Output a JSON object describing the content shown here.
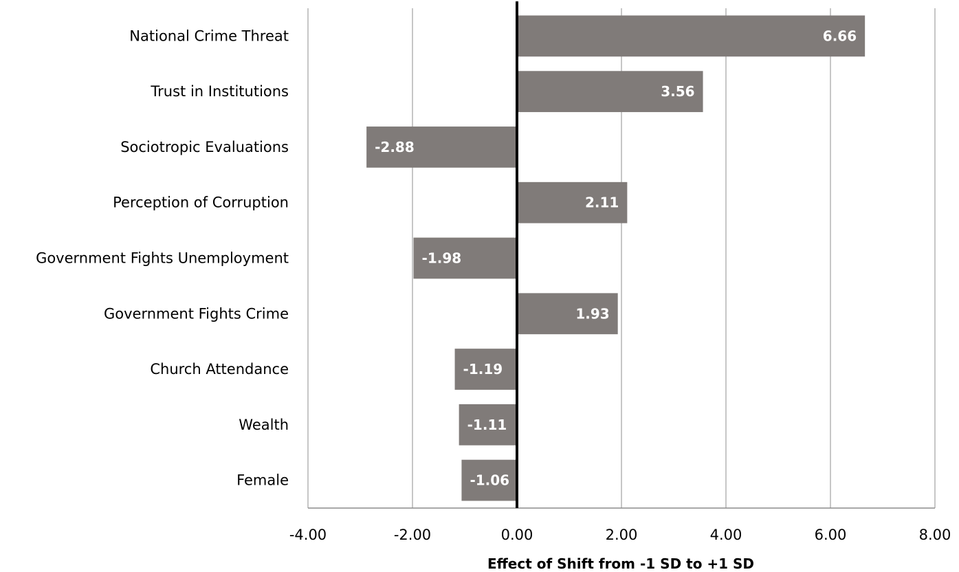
{
  "chart_data": {
    "type": "bar",
    "orientation": "horizontal",
    "categories": [
      "National Crime Threat",
      "Trust in Institutions",
      "Sociotropic Evaluations",
      "Perception of Corruption",
      "Government Fights Unemployment",
      "Government Fights Crime",
      "Church Attendance",
      "Wealth",
      "Female"
    ],
    "values": [
      6.66,
      3.56,
      -2.88,
      2.11,
      -1.98,
      1.93,
      -1.19,
      -1.11,
      -1.06
    ],
    "value_labels": [
      "6.66",
      "3.56",
      "-2.88",
      "2.11",
      "-1.98",
      "1.93",
      "-1.19",
      "-1.11",
      "-1.06"
    ],
    "xlim": [
      -4,
      8
    ],
    "xticks": [
      -4,
      -2,
      0,
      2,
      4,
      6,
      8
    ],
    "xtick_labels": [
      "-4.00",
      "-2.00",
      "0.00",
      "2.00",
      "4.00",
      "6.00",
      "8.00"
    ],
    "xlabel": "Effect of Shift from -1 SD to +1 SD",
    "ylabel": "",
    "title": "",
    "grid": "vertical",
    "bar_color": "#807b79",
    "zero_line_color": "#000000"
  }
}
